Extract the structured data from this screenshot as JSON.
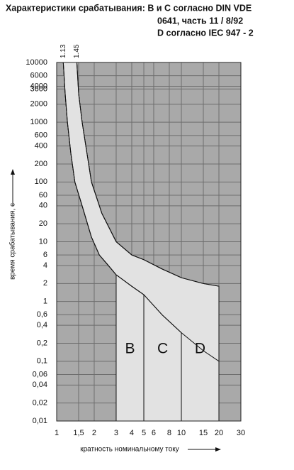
{
  "chart_data": {
    "type": "tripping-curves",
    "title_lines": [
      "Характеристики срабатывания: B и C согласно DIN VDE",
      "0641, часть 11 / 8/92",
      "D согласно IEC 947 - 2"
    ],
    "ylabel": "время срабатывания, с",
    "xlabel": "кратность номинальному току",
    "log_x": true,
    "log_y": true,
    "grid": true,
    "xlim": [
      1,
      30
    ],
    "ylim": [
      0.01,
      10000
    ],
    "xticks": [
      1,
      {
        "value": 1.5,
        "label": "1,5"
      },
      2,
      3,
      4,
      5,
      6,
      8,
      10,
      15,
      20,
      30
    ],
    "top_xticks": [
      1.13,
      1.45
    ],
    "yticks": [
      10000,
      6000,
      4000,
      3600,
      2000,
      1000,
      600,
      400,
      200,
      100,
      60,
      40,
      20,
      10,
      6,
      4,
      2,
      1,
      {
        "value": 0.6,
        "label": "0,6"
      },
      {
        "value": 0.4,
        "label": "0,4"
      },
      {
        "value": 0.2,
        "label": "0,2"
      },
      {
        "value": 0.1,
        "label": "0,1"
      },
      {
        "value": 0.06,
        "label": "0,06"
      },
      {
        "value": 0.04,
        "label": "0,04"
      },
      {
        "value": 0.02,
        "label": "0,02"
      },
      {
        "value": 0.01,
        "label": "0,01"
      }
    ],
    "lower_curve": {
      "x": [
        1.13,
        1.17,
        1.22,
        1.3,
        1.4,
        1.6,
        1.9,
        2.2,
        2.6,
        3,
        4,
        5,
        7,
        10,
        15,
        20
      ],
      "y": [
        10000,
        3000,
        1000,
        300,
        100,
        40,
        12,
        6,
        4,
        2.8,
        1.8,
        1.3,
        0.6,
        0.3,
        0.15,
        0.1
      ]
    },
    "upper_curve": {
      "x": [
        1.45,
        1.5,
        1.6,
        1.75,
        1.9,
        2.3,
        3,
        4,
        5,
        7,
        10,
        15,
        20
      ],
      "y": [
        10000,
        3000,
        1000,
        300,
        100,
        30,
        10,
        6,
        5,
        3.5,
        2.5,
        2,
        1.8
      ]
    },
    "zones": [
      {
        "label": "B",
        "min": 3,
        "max": 5
      },
      {
        "label": "C",
        "min": 5,
        "max": 10
      },
      {
        "label": "D",
        "min": 10,
        "max": 20
      }
    ],
    "background": "#a9a9a9",
    "grid_color": "#6e6e6e",
    "zone_color": "#e2e2e2",
    "curve_color": "#111111"
  }
}
